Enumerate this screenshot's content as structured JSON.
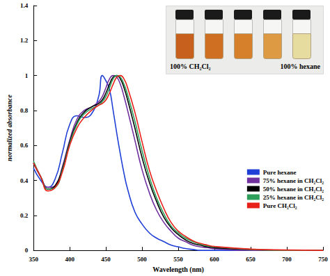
{
  "chart_data": {
    "type": "line",
    "x_label": "Wavelength (nm)",
    "y_label": "normalized absorbance",
    "x": [
      350,
      360,
      370,
      380,
      390,
      400,
      410,
      420,
      430,
      440,
      445,
      450,
      455,
      460,
      465,
      470,
      475,
      480,
      490,
      500,
      510,
      520,
      530,
      540,
      550,
      560,
      570,
      580,
      590,
      600,
      650,
      700,
      750
    ],
    "series": [
      {
        "name": "Pure hexane",
        "color": "#1f3fd6",
        "values": [
          0.47,
          0.4,
          0.36,
          0.41,
          0.56,
          0.72,
          0.77,
          0.76,
          0.78,
          0.88,
          1.0,
          0.97,
          0.92,
          0.8,
          0.67,
          0.55,
          0.44,
          0.35,
          0.22,
          0.15,
          0.1,
          0.07,
          0.05,
          0.03,
          0.02,
          0.01,
          0.005,
          0,
          0,
          0,
          0,
          0,
          0
        ]
      },
      {
        "name": "75% hexane in CH₂Cl₂",
        "color": "#7030a0",
        "values": [
          0.5,
          0.42,
          0.36,
          0.37,
          0.48,
          0.63,
          0.75,
          0.8,
          0.82,
          0.85,
          0.88,
          0.93,
          0.98,
          1.0,
          0.99,
          0.95,
          0.88,
          0.8,
          0.63,
          0.46,
          0.33,
          0.23,
          0.16,
          0.11,
          0.07,
          0.05,
          0.03,
          0.02,
          0.015,
          0.01,
          0,
          0,
          0
        ]
      },
      {
        "name": "50% hexane in CH₂Cl₂",
        "color": "#000000",
        "values": [
          0.5,
          0.42,
          0.35,
          0.37,
          0.47,
          0.62,
          0.73,
          0.79,
          0.82,
          0.84,
          0.86,
          0.9,
          0.95,
          0.99,
          1.0,
          0.98,
          0.93,
          0.86,
          0.7,
          0.53,
          0.39,
          0.28,
          0.19,
          0.13,
          0.09,
          0.06,
          0.04,
          0.03,
          0.02,
          0.015,
          0.005,
          0,
          0
        ]
      },
      {
        "name": "25% hexane in CH₂Cl₂",
        "color": "#2e9e5b",
        "values": [
          0.51,
          0.42,
          0.35,
          0.36,
          0.46,
          0.61,
          0.72,
          0.78,
          0.81,
          0.83,
          0.85,
          0.88,
          0.93,
          0.98,
          1.0,
          0.99,
          0.95,
          0.89,
          0.74,
          0.57,
          0.42,
          0.3,
          0.21,
          0.14,
          0.1,
          0.07,
          0.05,
          0.035,
          0.025,
          0.02,
          0.005,
          0,
          0
        ]
      },
      {
        "name": "Pure CH₂Cl₂",
        "color": "#e8201a",
        "values": [
          0.5,
          0.42,
          0.34,
          0.36,
          0.45,
          0.6,
          0.7,
          0.76,
          0.8,
          0.83,
          0.84,
          0.86,
          0.9,
          0.95,
          0.99,
          1.0,
          0.98,
          0.93,
          0.79,
          0.62,
          0.46,
          0.34,
          0.24,
          0.16,
          0.11,
          0.08,
          0.055,
          0.04,
          0.03,
          0.022,
          0.007,
          0.002,
          0
        ]
      }
    ],
    "xlim": [
      350,
      750
    ],
    "xticks": [
      350,
      400,
      450,
      500,
      550,
      600,
      650,
      700,
      750
    ],
    "ylim": [
      0,
      1.4
    ],
    "yticks": [
      0,
      0.2,
      0.4,
      0.6,
      0.8,
      1,
      1.2,
      1.4
    ],
    "grid": false,
    "legend": "right",
    "annotations": [
      {
        "text": "100% CH₂Cl₂"
      },
      {
        "text": "100% hexane"
      }
    ]
  }
}
